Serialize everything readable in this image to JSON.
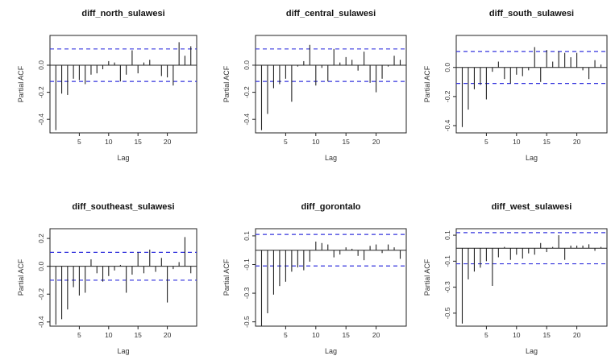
{
  "chart_data": [
    {
      "type": "bar",
      "title": "diff_north_sulawesi",
      "xlabel": "Lag",
      "ylabel": "Partial ACF",
      "x_ticks": [
        5,
        10,
        15,
        20
      ],
      "y_ticks": [
        -0.4,
        -0.2,
        0.0
      ],
      "xlim": [
        0,
        25
      ],
      "ylim": [
        -0.5,
        0.22
      ],
      "ci": 0.12,
      "lags": [
        1,
        2,
        3,
        4,
        5,
        6,
        7,
        8,
        9,
        10,
        11,
        12,
        13,
        14,
        15,
        16,
        17,
        18,
        19,
        20,
        21,
        22,
        23,
        24
      ],
      "values": [
        -0.48,
        -0.21,
        -0.22,
        -0.1,
        -0.11,
        -0.14,
        -0.07,
        -0.06,
        -0.03,
        0.03,
        0.02,
        -0.12,
        -0.07,
        0.11,
        -0.06,
        0.02,
        0.04,
        0.0,
        -0.08,
        -0.09,
        -0.15,
        0.17,
        0.07,
        0.14
      ]
    },
    {
      "type": "bar",
      "title": "diff_central_sulawesi",
      "xlabel": "Lag",
      "ylabel": "Partial ACF",
      "x_ticks": [
        5,
        10,
        15,
        20
      ],
      "y_ticks": [
        -0.4,
        -0.2,
        0.0
      ],
      "xlim": [
        0,
        25
      ],
      "ylim": [
        -0.5,
        0.22
      ],
      "ci": 0.12,
      "lags": [
        1,
        2,
        3,
        4,
        5,
        6,
        7,
        8,
        9,
        10,
        11,
        12,
        13,
        14,
        15,
        16,
        17,
        18,
        19,
        20,
        21,
        22,
        23,
        24
      ],
      "values": [
        -0.48,
        -0.36,
        -0.17,
        -0.14,
        -0.1,
        -0.27,
        -0.01,
        0.03,
        0.15,
        -0.15,
        -0.02,
        -0.12,
        0.12,
        0.02,
        0.06,
        0.04,
        -0.04,
        0.1,
        -0.13,
        -0.2,
        -0.1,
        -0.01,
        0.07,
        0.04
      ]
    },
    {
      "type": "bar",
      "title": "diff_south_sulawesi",
      "xlabel": "Lag",
      "ylabel": "Partial ACF",
      "x_ticks": [
        5,
        10,
        15,
        20
      ],
      "y_ticks": [
        -0.4,
        -0.2,
        0.0
      ],
      "xlim": [
        0,
        25
      ],
      "ylim": [
        -0.45,
        0.22
      ],
      "ci": 0.11,
      "lags": [
        1,
        2,
        3,
        4,
        5,
        6,
        7,
        8,
        9,
        10,
        11,
        12,
        13,
        14,
        15,
        16,
        17,
        18,
        19,
        20,
        21,
        22,
        23,
        24
      ],
      "values": [
        -0.41,
        -0.29,
        -0.15,
        -0.12,
        -0.22,
        -0.03,
        0.04,
        -0.08,
        -0.11,
        -0.05,
        -0.06,
        -0.02,
        0.14,
        -0.1,
        0.12,
        0.04,
        0.11,
        0.1,
        0.07,
        0.1,
        -0.02,
        -0.08,
        0.05,
        0.02
      ]
    },
    {
      "type": "bar",
      "title": "diff_southeast_sulawesi",
      "xlabel": "Lag",
      "ylabel": "Partial ACF",
      "x_ticks": [
        5,
        10,
        15,
        20
      ],
      "y_ticks": [
        -0.4,
        -0.2,
        0.0,
        0.2
      ],
      "xlim": [
        0,
        25
      ],
      "ylim": [
        -0.43,
        0.27
      ],
      "ci": 0.1,
      "lags": [
        1,
        2,
        3,
        4,
        5,
        6,
        7,
        8,
        9,
        10,
        11,
        12,
        13,
        14,
        15,
        16,
        17,
        18,
        19,
        20,
        21,
        22,
        23,
        24
      ],
      "values": [
        -0.42,
        -0.38,
        -0.31,
        -0.15,
        -0.21,
        -0.19,
        0.05,
        -0.05,
        -0.11,
        -0.07,
        -0.03,
        0.01,
        -0.19,
        -0.06,
        0.1,
        -0.05,
        0.12,
        -0.04,
        0.06,
        -0.26,
        -0.02,
        0.03,
        0.21,
        -0.05
      ]
    },
    {
      "type": "bar",
      "title": "diff_gorontalo",
      "xlabel": "Lag",
      "ylabel": "Partial ACF",
      "x_ticks": [
        5,
        10,
        15,
        20
      ],
      "y_ticks": [
        -0.5,
        -0.3,
        -0.1,
        0.1
      ],
      "xlim": [
        0,
        25
      ],
      "ylim": [
        -0.53,
        0.15
      ],
      "ci": 0.11,
      "lags": [
        1,
        2,
        3,
        4,
        5,
        6,
        7,
        8,
        9,
        10,
        11,
        12,
        13,
        14,
        15,
        16,
        17,
        18,
        19,
        20,
        21,
        22,
        23,
        24
      ],
      "values": [
        -0.53,
        -0.44,
        -0.31,
        -0.25,
        -0.22,
        -0.15,
        -0.12,
        -0.14,
        -0.08,
        0.06,
        0.05,
        0.04,
        -0.05,
        -0.03,
        0.02,
        0.01,
        -0.04,
        -0.07,
        0.03,
        0.04,
        -0.02,
        0.04,
        0.02,
        -0.06
      ]
    },
    {
      "type": "bar",
      "title": "diff_west_sulawesi",
      "xlabel": "Lag",
      "ylabel": "Partial ACF",
      "x_ticks": [
        5,
        10,
        15,
        20
      ],
      "y_ticks": [
        -0.5,
        -0.3,
        -0.1,
        0.1
      ],
      "xlim": [
        0,
        25
      ],
      "ylim": [
        -0.6,
        0.15
      ],
      "ci": 0.12,
      "lags": [
        1,
        2,
        3,
        4,
        5,
        6,
        7,
        8,
        9,
        10,
        11,
        12,
        13,
        14,
        15,
        16,
        17,
        18,
        19,
        20,
        21,
        22,
        23,
        24
      ],
      "values": [
        -0.58,
        -0.24,
        -0.18,
        -0.15,
        -0.1,
        -0.29,
        -0.07,
        0.01,
        -0.09,
        -0.05,
        -0.08,
        -0.04,
        -0.05,
        0.04,
        -0.03,
        0.01,
        0.1,
        -0.09,
        0.02,
        0.02,
        0.02,
        0.03,
        -0.02,
        0.01
      ]
    }
  ]
}
